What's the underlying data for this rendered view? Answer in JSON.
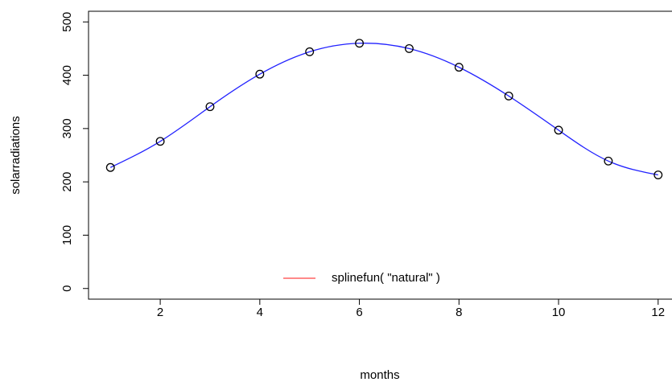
{
  "chart_data": {
    "type": "scatter",
    "x_label": "months",
    "y_label": "solarradiations",
    "x": [
      1,
      2,
      3,
      4,
      5,
      6,
      7,
      8,
      9,
      10,
      11,
      12
    ],
    "series": [
      {
        "name": "splinefun( \"natural\" )",
        "values": [
          227,
          276,
          341,
          402,
          444,
          460,
          450,
          415,
          361,
          297,
          239,
          213
        ],
        "color": "#000000",
        "curve_color": "#2222ff",
        "legend_color": "#ff4444"
      }
    ],
    "xlim": [
      0.56,
      12.44
    ],
    "ylim": [
      -20,
      520
    ],
    "xticks": [
      2,
      4,
      6,
      8,
      10,
      12
    ],
    "yticks": [
      0,
      100,
      200,
      300,
      400,
      500
    ],
    "legend_position": "bottom",
    "grid": false
  }
}
